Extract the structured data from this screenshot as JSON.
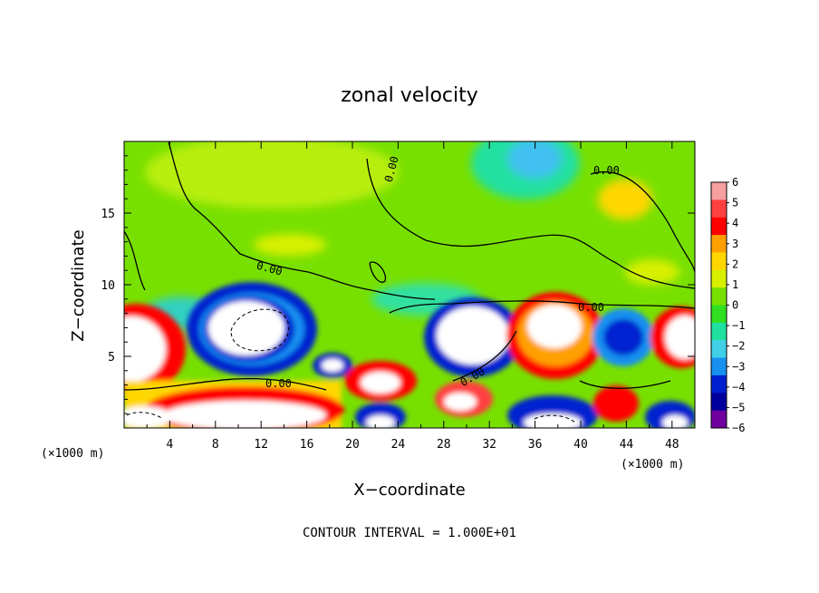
{
  "chart_data": {
    "type": "heatmap",
    "title": "zonal velocity",
    "xlabel": "X−coordinate",
    "ylabel": "Z−coordinate",
    "x_unit_label": "(×1000 m)",
    "y_unit_label": "(×1000 m)",
    "xlim": [
      0,
      50
    ],
    "ylim": [
      0,
      20
    ],
    "x_ticks": [
      4,
      8,
      12,
      16,
      20,
      24,
      28,
      32,
      36,
      40,
      44,
      48
    ],
    "y_ticks": [
      5,
      10,
      15
    ],
    "colorbar": {
      "ticks": [
        6,
        5,
        4,
        3,
        2,
        1,
        0,
        -1,
        -2,
        -3,
        -4,
        -5,
        -6
      ],
      "tick_labels": [
        "6",
        "5",
        "4",
        "3",
        "2",
        "1",
        "0",
        "−1",
        "−2",
        "−3",
        "−4",
        "−5",
        "−6"
      ],
      "colors": [
        "#f7a0a0",
        "#ff4040",
        "#ff0000",
        "#ffa000",
        "#ffd700",
        "#d8f000",
        "#78e000",
        "#30e020",
        "#20e0a0",
        "#40d0e8",
        "#1890f0",
        "#0020d0",
        "#0000a0",
        "#7000a0"
      ],
      "over_color": "#ffffff",
      "under_color": "#ffffff"
    },
    "contour_labels": [
      "0.00",
      "0.00",
      "0.00",
      "0.00",
      "0.00",
      "0.00"
    ],
    "contour_interval_text": "CONTOUR INTERVAL = 1.000E+01",
    "field_features": [
      {
        "x": 11.5,
        "z": 6.5,
        "value": -7,
        "desc": "strong negative core (white) ringed by blue"
      },
      {
        "x": 29.5,
        "z": 6.0,
        "value": -7,
        "desc": "negative core (white) ringed by blue"
      },
      {
        "x": 38.0,
        "z": 6.5,
        "value": 7,
        "desc": "positive core (white) ringed by red"
      },
      {
        "x": 2.0,
        "z": 5.0,
        "value": 7,
        "desc": "positive core near left boundary"
      },
      {
        "x": 48.5,
        "z": 6.5,
        "value": 7,
        "desc": "positive core near right boundary"
      },
      {
        "x": 43.5,
        "z": 6.5,
        "value": -4,
        "desc": "blue negative blob"
      },
      {
        "x": 34.0,
        "z": 18.5,
        "value": -2.5,
        "desc": "cyan/blue region at top"
      },
      {
        "x": 15.0,
        "z": 18.0,
        "value": 1.5,
        "desc": "yellow-green region at top"
      },
      {
        "x": 44.0,
        "z": 16.0,
        "value": 2.5,
        "desc": "yellow blob"
      },
      {
        "x": 13.0,
        "z": 2.0,
        "value": 6,
        "desc": "low-level positive band"
      },
      {
        "x": 37.0,
        "z": 1.0,
        "value": -6,
        "desc": "low-level negative band"
      }
    ]
  }
}
